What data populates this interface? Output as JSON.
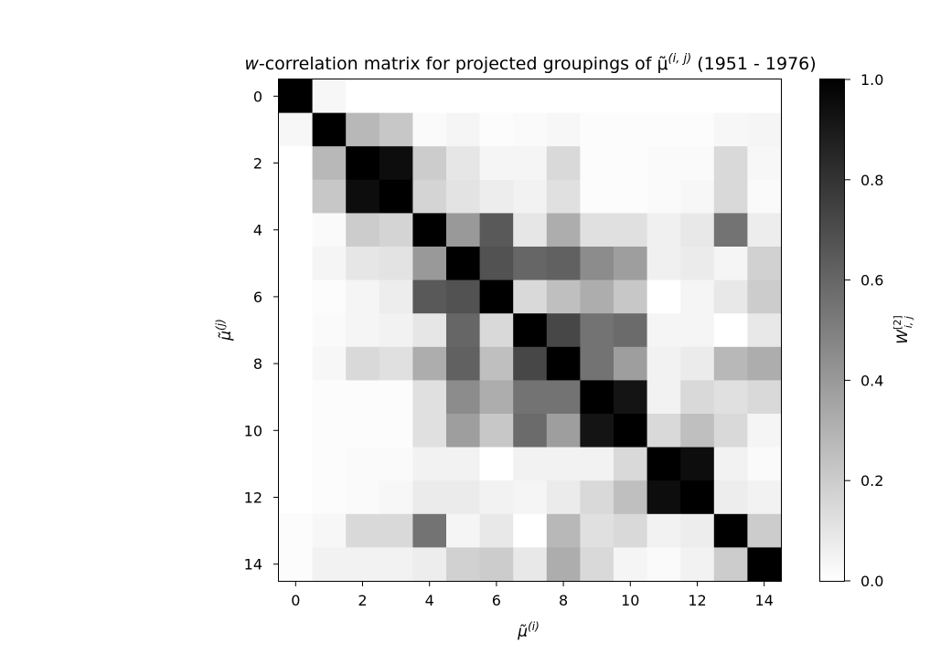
{
  "chart_data": {
    "type": "heatmap",
    "title": "w-correlation matrix for projected groupings of μ̃(i,j) (1951 - 1976)",
    "title_parts": {
      "w": "w",
      "rest": "-correlation matrix for projected groupings of ",
      "mu": "μ̃",
      "sup": "(i, j)",
      "years": " (1951 - 1976)"
    },
    "xlabel": {
      "mu": "μ̃",
      "sup": "(i)"
    },
    "ylabel": {
      "mu": "μ̃",
      "sup": "(j)"
    },
    "colorbar_label": {
      "symbol": "W",
      "sup": "[2]",
      "sub": "i, j"
    },
    "x_ticks": [
      0,
      2,
      4,
      6,
      8,
      10,
      12,
      14
    ],
    "y_ticks": [
      0,
      2,
      4,
      6,
      8,
      10,
      12,
      14
    ],
    "x_tick_labels": [
      "0",
      "2",
      "4",
      "6",
      "8",
      "10",
      "12",
      "14"
    ],
    "y_tick_labels": [
      "0",
      "2",
      "4",
      "6",
      "8",
      "10",
      "12",
      "14"
    ],
    "colorbar_ticks": [
      0.0,
      0.2,
      0.4,
      0.6,
      0.8,
      1.0
    ],
    "colorbar_tick_labels": [
      "0.0",
      "0.2",
      "0.4",
      "0.6",
      "0.8",
      "1.0"
    ],
    "vmin": 0.0,
    "vmax": 1.0,
    "colormap": "gray_r",
    "grid": false,
    "matrix": [
      [
        1.0,
        0.03,
        0.0,
        0.0,
        0.0,
        0.0,
        0.0,
        0.0,
        0.0,
        0.0,
        0.0,
        0.0,
        0.0,
        0.0,
        0.0
      ],
      [
        0.03,
        1.0,
        0.28,
        0.22,
        0.02,
        0.04,
        0.01,
        0.02,
        0.03,
        0.01,
        0.01,
        0.01,
        0.01,
        0.03,
        0.04
      ],
      [
        0.0,
        0.28,
        1.0,
        0.95,
        0.2,
        0.1,
        0.04,
        0.04,
        0.15,
        0.01,
        0.01,
        0.02,
        0.02,
        0.15,
        0.03
      ],
      [
        0.0,
        0.22,
        0.95,
        1.0,
        0.17,
        0.11,
        0.07,
        0.05,
        0.12,
        0.01,
        0.01,
        0.02,
        0.03,
        0.15,
        0.02
      ],
      [
        0.0,
        0.02,
        0.2,
        0.17,
        1.0,
        0.4,
        0.65,
        0.1,
        0.32,
        0.12,
        0.12,
        0.06,
        0.09,
        0.55,
        0.07
      ],
      [
        0.0,
        0.04,
        0.1,
        0.11,
        0.4,
        1.0,
        0.68,
        0.6,
        0.62,
        0.45,
        0.38,
        0.06,
        0.08,
        0.04,
        0.18
      ],
      [
        0.0,
        0.01,
        0.04,
        0.07,
        0.65,
        0.68,
        1.0,
        0.15,
        0.25,
        0.32,
        0.22,
        0.0,
        0.04,
        0.09,
        0.2
      ],
      [
        0.0,
        0.02,
        0.04,
        0.05,
        0.1,
        0.6,
        0.15,
        1.0,
        0.72,
        0.55,
        0.58,
        0.04,
        0.04,
        0.0,
        0.09
      ],
      [
        0.0,
        0.03,
        0.15,
        0.12,
        0.32,
        0.62,
        0.25,
        0.72,
        1.0,
        0.55,
        0.38,
        0.05,
        0.08,
        0.28,
        0.32
      ],
      [
        0.0,
        0.01,
        0.01,
        0.01,
        0.12,
        0.45,
        0.32,
        0.55,
        0.55,
        1.0,
        0.92,
        0.05,
        0.15,
        0.12,
        0.15
      ],
      [
        0.0,
        0.01,
        0.01,
        0.01,
        0.12,
        0.38,
        0.22,
        0.58,
        0.38,
        0.92,
        1.0,
        0.15,
        0.25,
        0.15,
        0.04
      ],
      [
        0.0,
        0.01,
        0.02,
        0.02,
        0.05,
        0.05,
        0.0,
        0.05,
        0.05,
        0.05,
        0.15,
        1.0,
        0.95,
        0.05,
        0.02
      ],
      [
        0.0,
        0.01,
        0.02,
        0.03,
        0.08,
        0.08,
        0.05,
        0.04,
        0.08,
        0.15,
        0.25,
        0.95,
        1.0,
        0.07,
        0.05
      ],
      [
        0.01,
        0.03,
        0.15,
        0.15,
        0.55,
        0.04,
        0.09,
        0.0,
        0.28,
        0.12,
        0.15,
        0.05,
        0.07,
        1.0,
        0.2
      ],
      [
        0.01,
        0.05,
        0.05,
        0.05,
        0.07,
        0.18,
        0.2,
        0.09,
        0.32,
        0.15,
        0.04,
        0.02,
        0.05,
        0.2,
        1.0
      ]
    ]
  }
}
